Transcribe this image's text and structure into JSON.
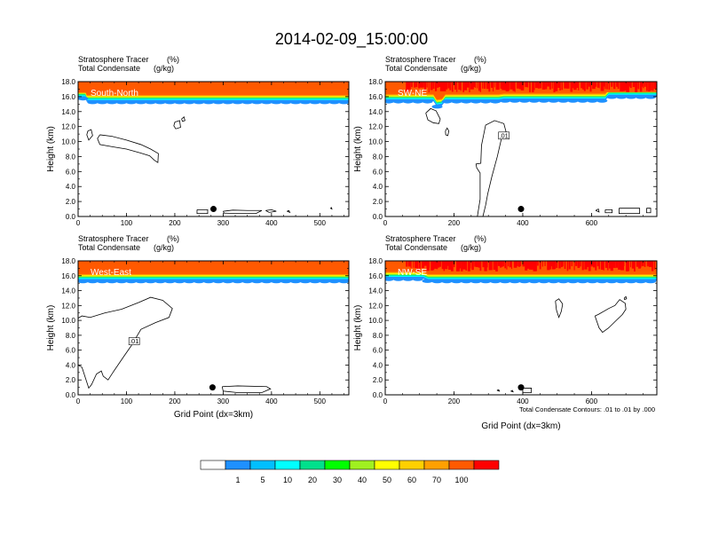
{
  "title": "2014-02-09_15:00:00",
  "colors": {
    "contour": "#000000",
    "tracer_top": "#ff0000",
    "tracer_main": "#ff5a00"
  },
  "chart_data": [
    {
      "type": "contour",
      "label": "South-North",
      "header_left_1": "Stratosphere Tracer",
      "header_left_2": "Total Condensate",
      "header_unit_1": "(%)",
      "header_unit_2": "(g/kg)",
      "xlabel": "",
      "ylabel": "Height (km)",
      "xlim": [
        0,
        560
      ],
      "ylim": [
        0,
        18
      ],
      "xticks": [
        0,
        100,
        200,
        300,
        400,
        500
      ],
      "yticks": [
        "0.0",
        "2.0",
        "4.0",
        "6.0",
        "8.0",
        "10.0",
        "12.0",
        "14.0",
        "16.0",
        "18.0"
      ],
      "tracer_base_km": [
        [
          0,
          16.1
        ],
        [
          15,
          16.1
        ],
        [
          18,
          15.6
        ],
        [
          460,
          15.6
        ],
        [
          560,
          15.6
        ]
      ],
      "tracer_step": [
        [
          0,
          16.5
        ],
        [
          330,
          16.5
        ],
        [
          335,
          17.0
        ],
        [
          560,
          17.0
        ]
      ],
      "streaks": false,
      "contour_label": "",
      "contours": [
        [
          [
            20,
            11.4
          ],
          [
            27,
            11.6
          ],
          [
            30,
            10.8
          ],
          [
            22,
            10.2
          ],
          [
            18,
            10.9
          ],
          [
            20,
            11.4
          ]
        ],
        [
          [
            45,
            10.9
          ],
          [
            70,
            10.7
          ],
          [
            100,
            10.2
          ],
          [
            130,
            9.6
          ],
          [
            150,
            9.0
          ],
          [
            166,
            8.4
          ],
          [
            165,
            7.2
          ],
          [
            158,
            7.5
          ],
          [
            148,
            8.1
          ],
          [
            128,
            8.5
          ],
          [
            100,
            9.0
          ],
          [
            72,
            9.3
          ],
          [
            45,
            9.6
          ],
          [
            40,
            10.4
          ],
          [
            45,
            10.9
          ]
        ],
        [
          [
            200,
            12.6
          ],
          [
            210,
            12.8
          ],
          [
            212,
            11.9
          ],
          [
            202,
            11.7
          ],
          [
            198,
            12.1
          ],
          [
            200,
            12.6
          ]
        ],
        [
          [
            214,
            13.0
          ],
          [
            219,
            13.3
          ],
          [
            221,
            12.8
          ],
          [
            216,
            12.7
          ],
          [
            214,
            13.0
          ]
        ],
        [
          [
            246,
            0.9
          ],
          [
            268,
            0.9
          ],
          [
            268,
            0.4
          ],
          [
            246,
            0.4
          ],
          [
            246,
            0.9
          ]
        ],
        [
          [
            300,
            0.7
          ],
          [
            320,
            0.85
          ],
          [
            350,
            0.8
          ],
          [
            380,
            0.8
          ],
          [
            368,
            0.4
          ],
          [
            330,
            0.4
          ],
          [
            302,
            0.45
          ],
          [
            300,
            0.7
          ]
        ],
        [
          [
            388,
            0.8
          ],
          [
            400,
            0.9
          ],
          [
            410,
            0.7
          ],
          [
            395,
            0.55
          ],
          [
            388,
            0.8
          ]
        ],
        [
          [
            432,
            0.7
          ],
          [
            436,
            0.8
          ],
          [
            438,
            0.55
          ],
          [
            432,
            0.7
          ]
        ],
        [
          [
            522,
            1.1
          ],
          [
            524,
            1.2
          ],
          [
            525,
            1.0
          ],
          [
            522,
            1.1
          ]
        ]
      ],
      "marker": {
        "x": 280,
        "y": 1.0
      }
    },
    {
      "type": "contour",
      "label": "SW-NE",
      "header_left_1": "Stratosphere Tracer",
      "header_left_2": "Total Condensate",
      "header_unit_1": "(%)",
      "header_unit_2": "(g/kg)",
      "xlabel": "",
      "ylabel": "Height (km)",
      "xlim": [
        0,
        790
      ],
      "ylim": [
        0,
        18
      ],
      "xticks": [
        0,
        200,
        400,
        600
      ],
      "yticks": [
        "0.0",
        "2.0",
        "4.0",
        "6.0",
        "8.0",
        "10.0",
        "12.0",
        "14.0",
        "16.0",
        "18.0"
      ],
      "tracer_base_km": [
        [
          0,
          15.7
        ],
        [
          140,
          15.7
        ],
        [
          150,
          15.0
        ],
        [
          165,
          15.1
        ],
        [
          175,
          15.7
        ],
        [
          330,
          15.7
        ],
        [
          345,
          15.8
        ],
        [
          640,
          15.8
        ],
        [
          650,
          16.3
        ],
        [
          790,
          16.3
        ]
      ],
      "tracer_step": [
        [
          0,
          16.6
        ],
        [
          790,
          16.6
        ]
      ],
      "streaks": true,
      "contour_label": ".01",
      "contours": [
        [
          [
            118,
            13.8
          ],
          [
            132,
            14.4
          ],
          [
            148,
            14.1
          ],
          [
            160,
            13.0
          ],
          [
            156,
            12.4
          ],
          [
            140,
            12.5
          ],
          [
            124,
            12.9
          ],
          [
            118,
            13.8
          ]
        ],
        [
          [
            175,
            11.4
          ],
          [
            180,
            11.8
          ],
          [
            185,
            11.4
          ],
          [
            182,
            10.8
          ],
          [
            176,
            10.9
          ],
          [
            175,
            11.4
          ]
        ],
        [
          [
            268,
            0.0
          ],
          [
            276,
            2.3
          ],
          [
            276,
            5.8
          ],
          [
            266,
            6.5
          ],
          [
            264,
            7.0
          ],
          [
            278,
            7.1
          ],
          [
            280,
            9.5
          ],
          [
            292,
            12.2
          ],
          [
            318,
            12.8
          ],
          [
            345,
            12.4
          ],
          [
            352,
            11.2
          ],
          [
            338,
            10.4
          ],
          [
            326,
            8.0
          ],
          [
            310,
            5.3
          ],
          [
            298,
            3.0
          ],
          [
            292,
            1.5
          ],
          [
            284,
            0.0
          ]
        ],
        [
          [
            612,
            0.8
          ],
          [
            620,
            1.0
          ],
          [
            622,
            0.6
          ],
          [
            612,
            0.8
          ]
        ],
        [
          [
            640,
            0.9
          ],
          [
            660,
            0.9
          ],
          [
            660,
            0.5
          ],
          [
            640,
            0.5
          ],
          [
            640,
            0.9
          ]
        ],
        [
          [
            680,
            1.1
          ],
          [
            740,
            1.1
          ],
          [
            740,
            0.4
          ],
          [
            680,
            0.4
          ],
          [
            680,
            1.1
          ]
        ],
        [
          [
            760,
            1.1
          ],
          [
            772,
            1.1
          ],
          [
            772,
            0.5
          ],
          [
            760,
            0.5
          ],
          [
            760,
            1.1
          ]
        ]
      ],
      "marker": {
        "x": 395,
        "y": 1.0
      }
    },
    {
      "type": "contour",
      "label": "West-East",
      "header_left_1": "Stratosphere Tracer",
      "header_left_2": "Total Condensate",
      "header_unit_1": "(%)",
      "header_unit_2": "(g/kg)",
      "xlabel": "Grid Point (dx=3km)",
      "ylabel": "Height (km)",
      "xlim": [
        0,
        560
      ],
      "ylim": [
        0,
        18
      ],
      "xticks": [
        0,
        100,
        200,
        300,
        400,
        500
      ],
      "yticks": [
        "0.0",
        "2.0",
        "4.0",
        "6.0",
        "8.0",
        "10.0",
        "12.0",
        "14.0",
        "16.0",
        "18.0"
      ],
      "tracer_base_km": [
        [
          0,
          15.6
        ],
        [
          560,
          15.6
        ]
      ],
      "tracer_step": [
        [
          0,
          16.4
        ],
        [
          560,
          16.4
        ]
      ],
      "streaks": false,
      "contour_label": ".01",
      "contours": [
        [
          [
            0,
            10.3
          ],
          [
            8,
            10.6
          ],
          [
            25,
            10.4
          ],
          [
            55,
            11.0
          ],
          [
            90,
            11.5
          ],
          [
            125,
            12.4
          ],
          [
            150,
            13.1
          ],
          [
            175,
            12.7
          ],
          [
            195,
            11.6
          ],
          [
            188,
            10.4
          ],
          [
            160,
            9.7
          ],
          [
            130,
            8.8
          ],
          [
            110,
            6.6
          ],
          [
            95,
            5.2
          ],
          [
            72,
            3.0
          ],
          [
            62,
            2.0
          ],
          [
            52,
            2.5
          ],
          [
            48,
            3.2
          ],
          [
            38,
            2.8
          ],
          [
            28,
            1.4
          ],
          [
            22,
            0.9
          ],
          [
            15,
            2.3
          ],
          [
            8,
            3.7
          ],
          [
            0,
            4.0
          ]
        ],
        [
          [
            298,
            1.1
          ],
          [
            330,
            1.2
          ],
          [
            390,
            1.1
          ],
          [
            398,
            0.8
          ],
          [
            380,
            0.3
          ],
          [
            330,
            0.3
          ],
          [
            300,
            0.5
          ],
          [
            298,
            1.1
          ]
        ]
      ],
      "marker": {
        "x": 278,
        "y": 1.0
      }
    },
    {
      "type": "contour",
      "label": "NW-SE",
      "header_left_1": "Stratosphere Tracer",
      "header_left_2": "Total Condensate",
      "header_unit_1": "(%)",
      "header_unit_2": "(g/kg)",
      "xlabel": "Grid Point (dx=3km)",
      "ylabel": "Height (km)",
      "xlim": [
        0,
        790
      ],
      "ylim": [
        0,
        18
      ],
      "xticks": [
        0,
        200,
        400,
        600
      ],
      "yticks": [
        "0.0",
        "2.0",
        "4.0",
        "6.0",
        "8.0",
        "10.0",
        "12.0",
        "14.0",
        "16.0",
        "18.0"
      ],
      "tracer_base_km": [
        [
          0,
          15.9
        ],
        [
          110,
          15.9
        ],
        [
          125,
          15.6
        ],
        [
          790,
          15.6
        ]
      ],
      "tracer_step": [
        [
          0,
          16.6
        ],
        [
          790,
          16.6
        ]
      ],
      "streaks": true,
      "contour_label": "",
      "contours": [
        [
          [
            495,
            12.6
          ],
          [
            505,
            12.9
          ],
          [
            516,
            12.2
          ],
          [
            512,
            11.2
          ],
          [
            505,
            10.4
          ],
          [
            498,
            11.4
          ],
          [
            495,
            12.6
          ]
        ],
        [
          [
            610,
            10.6
          ],
          [
            620,
            10.8
          ],
          [
            650,
            11.6
          ],
          [
            668,
            12.0
          ],
          [
            682,
            12.8
          ],
          [
            698,
            12.3
          ],
          [
            700,
            11.5
          ],
          [
            690,
            10.8
          ],
          [
            672,
            10.0
          ],
          [
            650,
            9.0
          ],
          [
            632,
            8.4
          ],
          [
            622,
            9.0
          ],
          [
            610,
            10.6
          ]
        ],
        [
          [
            695,
            13.0
          ],
          [
            700,
            13.2
          ],
          [
            702,
            12.9
          ],
          [
            696,
            12.8
          ],
          [
            695,
            13.0
          ]
        ],
        [
          [
            325,
            0.6
          ],
          [
            330,
            0.7
          ],
          [
            332,
            0.5
          ],
          [
            325,
            0.6
          ]
        ],
        [
          [
            365,
            0.5
          ],
          [
            370,
            0.6
          ],
          [
            372,
            0.4
          ],
          [
            365,
            0.5
          ]
        ],
        [
          [
            400,
            0.9
          ],
          [
            425,
            0.9
          ],
          [
            425,
            0.3
          ],
          [
            400,
            0.3
          ],
          [
            400,
            0.9
          ]
        ]
      ],
      "marker": {
        "x": 395,
        "y": 1.0
      }
    }
  ],
  "footnote": "Total Condensate Contours: .01 to .01 by .000",
  "colorbar": {
    "colors": [
      "#ffffff",
      "#1e90ff",
      "#00bfff",
      "#00ffff",
      "#00e08c",
      "#00ff00",
      "#a0f020",
      "#ffff00",
      "#ffd000",
      "#ffa000",
      "#ff5a00",
      "#ff0000"
    ],
    "labels": [
      "1",
      "5",
      "10",
      "20",
      "30",
      "40",
      "50",
      "60",
      "70",
      "100"
    ]
  }
}
